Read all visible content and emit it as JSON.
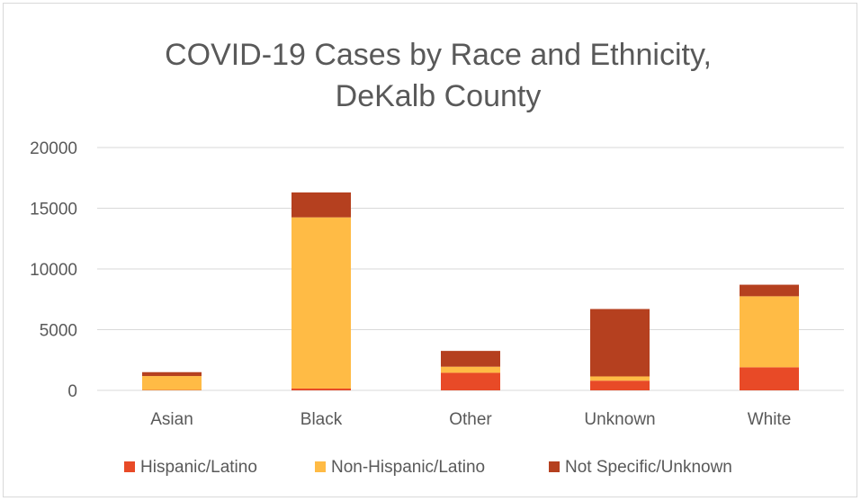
{
  "chart_data": {
    "type": "bar",
    "stacked": true,
    "title": "COVID-19 Cases by Race and Ethnicity, DeKalb County",
    "title_lines": [
      "COVID-19 Cases by Race and Ethnicity,",
      "DeKalb County"
    ],
    "xlabel": "",
    "ylabel": "",
    "categories": [
      "Asian",
      "Black",
      "Other",
      "Unknown",
      "White"
    ],
    "series": [
      {
        "name": "Hispanic/Latino",
        "color": "#E84A27",
        "values": [
          30,
          150,
          1450,
          800,
          1900
        ]
      },
      {
        "name": "Non-Hispanic/Latino",
        "color": "#FFBB45",
        "values": [
          1150,
          14100,
          500,
          350,
          5850
        ]
      },
      {
        "name": "Not Specific/Unknown",
        "color": "#B5401F",
        "values": [
          320,
          2050,
          1300,
          5550,
          950
        ]
      }
    ],
    "ylim": [
      0,
      20000
    ],
    "yticks": [
      "0",
      "5000",
      "10000",
      "15000",
      "20000"
    ],
    "ytick_values": [
      0,
      5000,
      10000,
      15000,
      20000
    ],
    "grid": true,
    "legend_position": "bottom"
  },
  "colors": {
    "text": "#595959",
    "grid": "#d9d9d9",
    "border": "#d9d9d9"
  }
}
